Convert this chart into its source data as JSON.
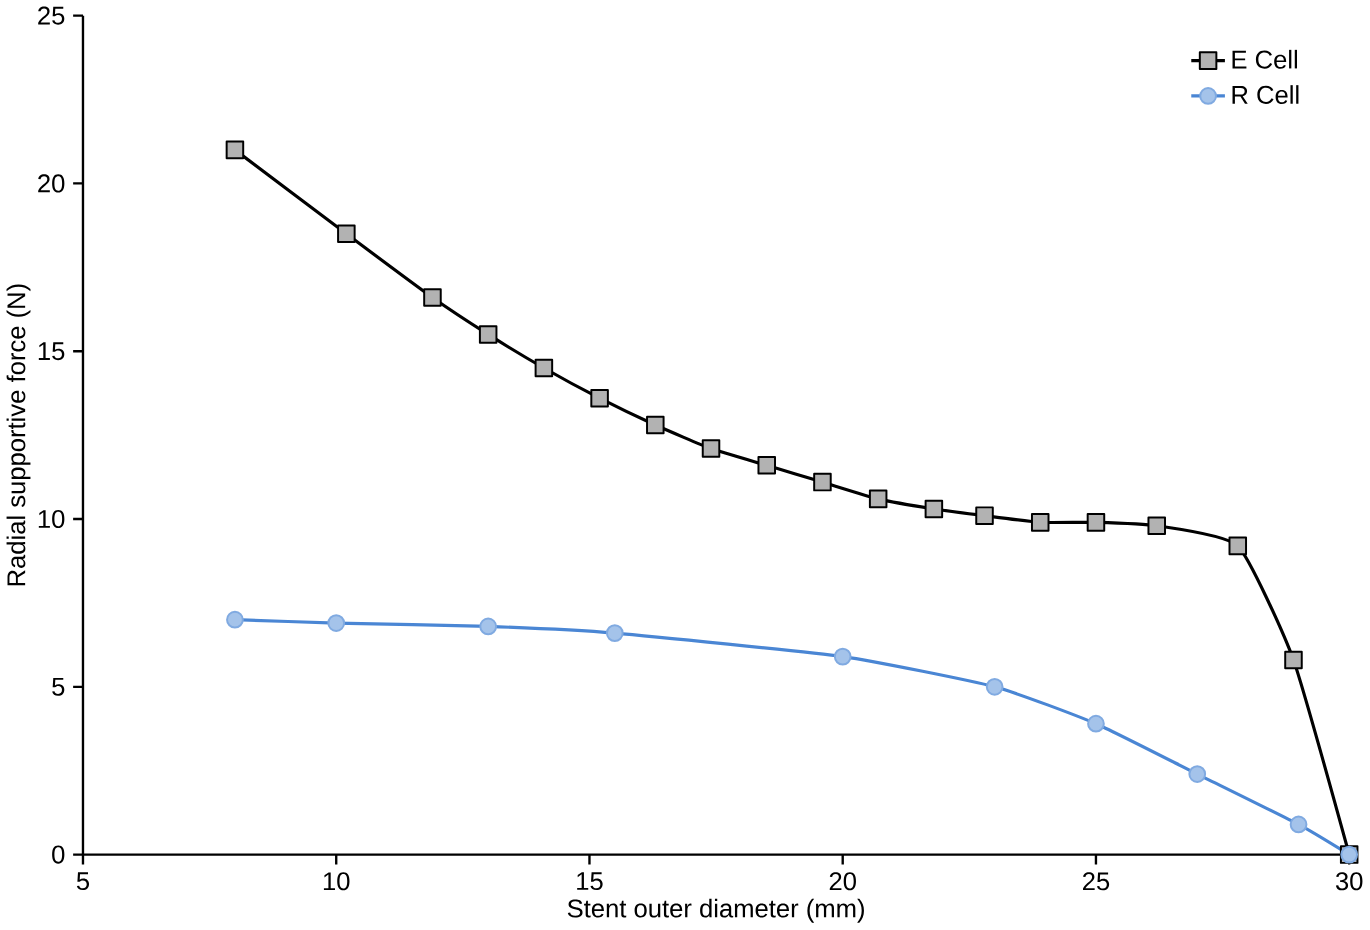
{
  "chart_data": {
    "type": "line",
    "xlabel": "Stent outer diameter (mm)",
    "ylabel": "Radial supportive force (N)",
    "xlim": [
      5,
      30
    ],
    "xticks": [
      5,
      10,
      15,
      20,
      25,
      30
    ],
    "ylim": [
      0,
      25
    ],
    "yticks": [
      0,
      5,
      10,
      15,
      20,
      25
    ],
    "grid": false,
    "legend": "top right",
    "series": [
      {
        "name": "E Cell",
        "color": "#000000",
        "marker": "square",
        "x": [
          8.0,
          10.2,
          11.9,
          13.0,
          14.1,
          15.2,
          16.3,
          17.4,
          18.5,
          19.6,
          20.7,
          21.8,
          22.8,
          23.9,
          25.0,
          26.2,
          27.8,
          28.9,
          30.0
        ],
        "values": [
          21.0,
          18.5,
          16.6,
          15.5,
          14.5,
          13.6,
          12.8,
          12.1,
          11.6,
          11.1,
          10.6,
          10.3,
          10.1,
          9.9,
          9.9,
          9.8,
          9.2,
          5.8,
          0
        ]
      },
      {
        "name": "R Cell",
        "color": "#4a86d4",
        "marker": "circle",
        "x": [
          8.0,
          10.0,
          13.0,
          15.5,
          20.0,
          23.0,
          25.0,
          27.0,
          29.0,
          30.0
        ],
        "values": [
          7.0,
          6.9,
          6.8,
          6.6,
          5.9,
          5.0,
          3.9,
          2.4,
          0.9,
          0
        ]
      }
    ]
  }
}
